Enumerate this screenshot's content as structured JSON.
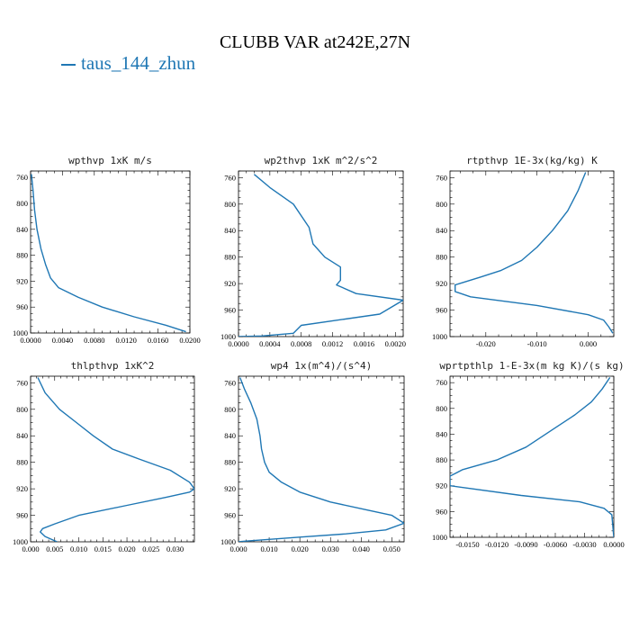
{
  "figure": {
    "title": "CLUBB VAR at242E,27N",
    "legend": {
      "label": "taus_144_zhun",
      "color": "#1f77b4"
    }
  },
  "chart_data": [
    {
      "type": "line",
      "title": "wpthvp  1xK m/s",
      "xlim": [
        0,
        0.02
      ],
      "ylim": [
        1000,
        750
      ],
      "xticks": [
        0,
        0.004,
        0.008,
        0.012,
        0.016,
        0.02
      ],
      "xtick_labels": [
        "0.0000",
        "0.0040",
        "0.0080",
        "0.0120",
        "0.0160",
        "0.0200"
      ],
      "yticks": [
        760,
        800,
        840,
        880,
        920,
        960,
        1000
      ],
      "series": [
        {
          "color": "#1f77b4",
          "x": [
            0.0001,
            0.0003,
            0.0005,
            0.0008,
            0.0013,
            0.0019,
            0.0025,
            0.0035,
            0.006,
            0.009,
            0.013,
            0.017,
            0.0195
          ],
          "y": [
            755,
            780,
            810,
            840,
            870,
            895,
            915,
            930,
            945,
            960,
            975,
            988,
            998
          ]
        }
      ]
    },
    {
      "type": "line",
      "title": "wp2thvp  1xK m^2/s^2",
      "xlim": [
        0,
        0.0021
      ],
      "ylim": [
        1000,
        750
      ],
      "xticks": [
        0,
        0.0004,
        0.0008,
        0.0012,
        0.0016,
        0.002
      ],
      "xtick_labels": [
        "0.0000",
        "0.0004",
        "0.0008",
        "0.0012",
        "0.0016",
        "0.0020"
      ],
      "yticks": [
        760,
        800,
        840,
        880,
        920,
        960,
        1000
      ],
      "series": [
        {
          "color": "#1f77b4",
          "x": [
            0.0002,
            0.0004,
            0.0007,
            0.0009,
            0.00095,
            0.0011,
            0.0013,
            0.0013,
            0.00125,
            0.0015,
            0.0021,
            0.0018,
            0.0008,
            0.0007,
            0.0003,
            0.0
          ],
          "y": [
            755,
            775,
            800,
            835,
            860,
            880,
            895,
            915,
            922,
            935,
            945,
            966,
            983,
            995,
            999,
            1000
          ]
        }
      ]
    },
    {
      "type": "line",
      "title": "rtpthvp  1E-3x(kg/kg) K",
      "xlim": [
        -0.027,
        0.005
      ],
      "ylim": [
        1000,
        750
      ],
      "xticks": [
        -0.02,
        -0.01,
        0
      ],
      "xtick_labels": [
        "-0.020",
        "-0.010",
        "0.000"
      ],
      "yticks": [
        760,
        800,
        840,
        880,
        920,
        960,
        1000
      ],
      "series": [
        {
          "color": "#1f77b4",
          "x": [
            -0.0005,
            -0.002,
            -0.004,
            -0.007,
            -0.01,
            -0.013,
            -0.017,
            -0.021,
            -0.026,
            -0.026,
            -0.023,
            -0.01,
            0.0,
            0.003,
            0.004,
            0.0048
          ],
          "y": [
            752,
            780,
            810,
            840,
            865,
            885,
            900,
            910,
            922,
            932,
            940,
            953,
            967,
            975,
            985,
            995
          ]
        }
      ]
    },
    {
      "type": "line",
      "title": "thlpthvp  1xK^2",
      "xlim": [
        0,
        0.034
      ],
      "ylim": [
        1000,
        750
      ],
      "xticks": [
        0,
        0.005,
        0.01,
        0.015,
        0.02,
        0.025,
        0.03
      ],
      "xtick_labels": [
        "0.000",
        "0.005",
        "0.010",
        "0.015",
        "0.020",
        "0.025",
        "0.030"
      ],
      "yticks": [
        760,
        800,
        840,
        880,
        920,
        960,
        1000
      ],
      "series": [
        {
          "color": "#1f77b4",
          "x": [
            0.0015,
            0.003,
            0.006,
            0.0095,
            0.013,
            0.017,
            0.0225,
            0.029,
            0.033,
            0.034,
            0.033,
            0.028,
            0.02,
            0.01,
            0.005,
            0.0025,
            0.002,
            0.003,
            0.0055
          ],
          "y": [
            752,
            775,
            800,
            820,
            840,
            860,
            875,
            892,
            910,
            920,
            925,
            933,
            945,
            960,
            973,
            980,
            985,
            992,
            1000
          ]
        }
      ]
    },
    {
      "type": "line",
      "title": "wp4  1x(m^4)/(s^4)",
      "xlim": [
        0,
        0.054
      ],
      "ylim": [
        1000,
        750
      ],
      "xticks": [
        0,
        0.01,
        0.02,
        0.03,
        0.04,
        0.05
      ],
      "xtick_labels": [
        "0.000",
        "0.010",
        "0.020",
        "0.030",
        "0.040",
        "0.050"
      ],
      "yticks": [
        760,
        800,
        840,
        880,
        920,
        960,
        1000
      ],
      "series": [
        {
          "color": "#1f77b4",
          "x": [
            0.0005,
            0.002,
            0.004,
            0.006,
            0.007,
            0.0075,
            0.0085,
            0.01,
            0.014,
            0.02,
            0.03,
            0.042,
            0.05,
            0.054,
            0.048,
            0.035,
            0.02,
            0.008,
            0.002,
            0.0
          ],
          "y": [
            752,
            770,
            790,
            815,
            840,
            860,
            880,
            895,
            910,
            925,
            940,
            952,
            960,
            972,
            982,
            988,
            993,
            997,
            999,
            1000
          ]
        }
      ]
    },
    {
      "type": "line",
      "title": "wprtpthlp  1-E-3x(m kg K)/(s kg)",
      "xlim": [
        -0.0168,
        0
      ],
      "ylim": [
        1000,
        750
      ],
      "xticks": [
        -0.015,
        -0.012,
        -0.009,
        -0.006,
        -0.003,
        0
      ],
      "xtick_labels": [
        "-0.0150",
        "-0.0120",
        "-0.0090",
        "-0.0060",
        "-0.0030",
        "0.0000"
      ],
      "yticks": [
        760,
        800,
        840,
        880,
        920,
        960,
        1000
      ],
      "series": [
        {
          "color": "#1f77b4",
          "x": [
            -0.0004,
            -0.0012,
            -0.0023,
            -0.004,
            -0.006,
            -0.009,
            -0.012,
            -0.0155,
            -0.0168,
            -0.0168,
            -0.0095,
            -0.0035,
            -0.001,
            -0.0002,
            0.0
          ],
          "y": [
            752,
            770,
            790,
            810,
            830,
            860,
            880,
            895,
            905,
            920,
            935,
            945,
            955,
            965,
            1000
          ]
        }
      ]
    }
  ]
}
